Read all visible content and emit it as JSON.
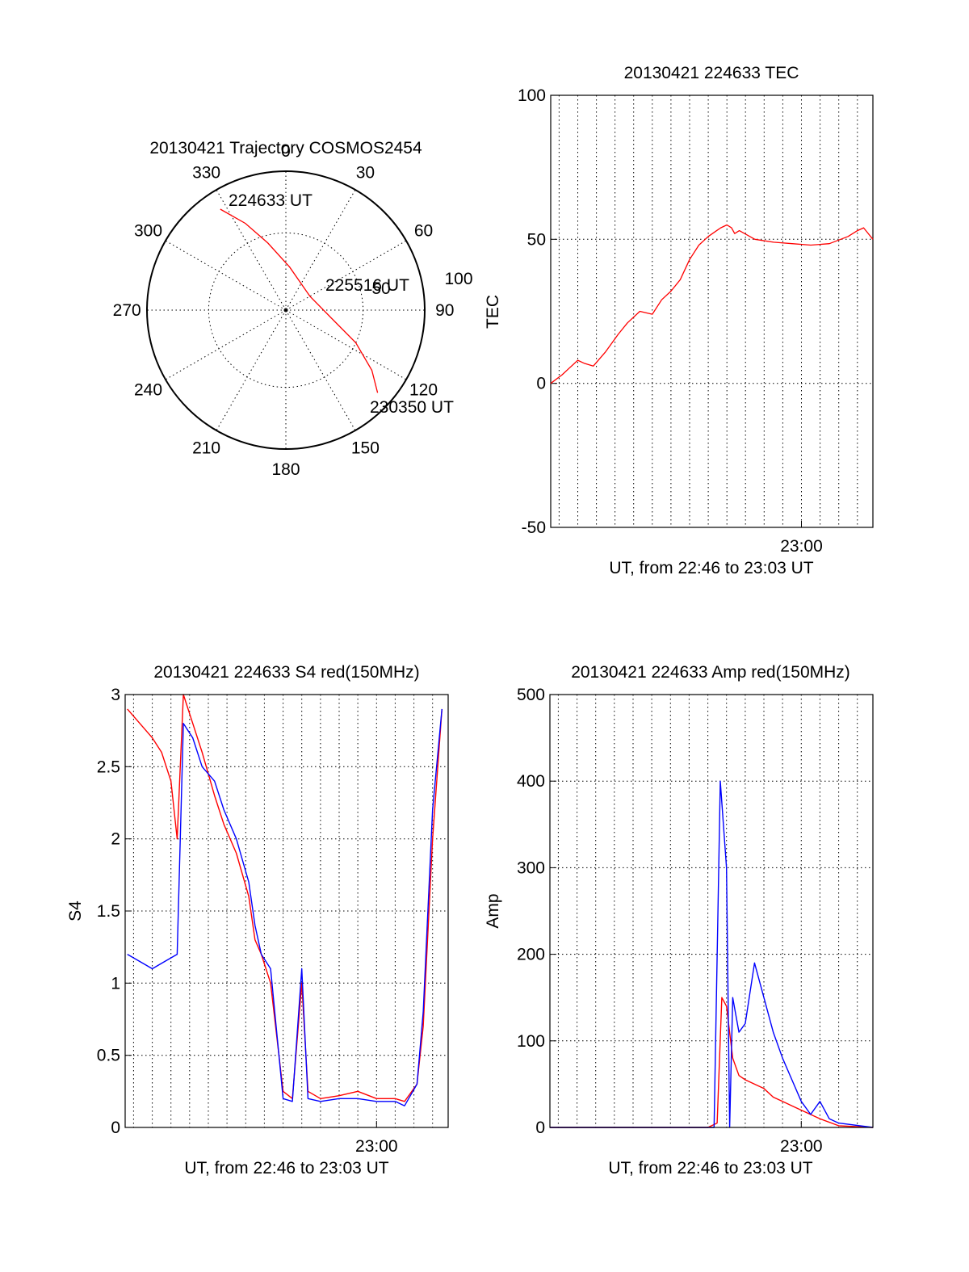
{
  "colors": {
    "series_red": "#ff0000",
    "series_blue": "#0000ff",
    "axis": "#000000"
  },
  "chart_data": [
    {
      "id": "trajectory",
      "type": "scatter",
      "title": "20130421 Trajectory COSMOS2454",
      "coordinate_system": "polar (azimuth degrees clockwise from north, zenith angle outward)",
      "azimuth_labels": [
        "0",
        "30",
        "60",
        "90",
        "120",
        "150",
        "180",
        "210",
        "240",
        "270",
        "300",
        "330"
      ],
      "radial_labels": [
        "50",
        "100"
      ],
      "grid": true,
      "track": [
        {
          "az": 327,
          "za": 78
        },
        {
          "az": 335,
          "za": 62
        },
        {
          "az": 345,
          "za": 45
        },
        {
          "az": 5,
          "za": 28
        },
        {
          "az": 60,
          "za": 18
        },
        {
          "az": 100,
          "za": 30
        },
        {
          "az": 115,
          "za": 50
        },
        {
          "az": 125,
          "za": 68
        },
        {
          "az": 132,
          "za": 80
        }
      ],
      "annotations": [
        {
          "text": "224633 UT",
          "az": 327,
          "za": 78
        },
        {
          "text": "225516 UT",
          "az": 75,
          "za": 30
        },
        {
          "text": "230350 UT",
          "az": 132,
          "za": 80
        }
      ]
    },
    {
      "id": "tec",
      "type": "line",
      "title": "20130421 224633 TEC",
      "xlabel": "UT, from 22:46 to 23:03 UT",
      "ylabel": "TEC",
      "xlim": [
        "22:46:33",
        "23:03:50"
      ],
      "ylim": [
        -50,
        100
      ],
      "yticks": [
        "-50",
        "0",
        "50",
        "100"
      ],
      "xtick_labels": [
        {
          "x": "23:00:00",
          "label": "23:00"
        }
      ],
      "grid": true,
      "series": [
        {
          "color": "#ff0000",
          "x": [
            "22:46:33",
            "22:47:10",
            "22:47:30",
            "22:48:00",
            "22:48:20",
            "22:48:50",
            "22:49:30",
            "22:50:10",
            "22:50:40",
            "22:51:20",
            "22:52:00",
            "22:52:30",
            "22:53:00",
            "22:53:30",
            "22:54:00",
            "22:54:30",
            "22:55:00",
            "22:55:40",
            "22:56:00",
            "22:56:15",
            "22:56:25",
            "22:56:40",
            "22:57:30",
            "22:58:30",
            "22:59:30",
            "23:00:30",
            "23:01:30",
            "23:02:30",
            "23:03:00",
            "23:03:20",
            "23:03:50"
          ],
          "y": [
            0,
            3,
            5,
            8,
            7,
            6,
            11,
            17,
            21,
            25,
            24,
            29,
            32,
            36,
            43,
            48,
            51,
            54,
            55,
            54,
            52,
            53,
            50,
            49,
            48.5,
            48,
            48.5,
            51,
            53,
            54,
            50
          ]
        }
      ]
    },
    {
      "id": "s4",
      "type": "line",
      "title": "20130421 224633 S4 red(150MHz)",
      "xlabel": "UT, from 22:46 to 23:03 UT",
      "ylabel": "S4",
      "xlim": [
        "22:46:33",
        "23:03:50"
      ],
      "ylim": [
        0,
        3
      ],
      "yticks": [
        "0",
        "0.5",
        "1",
        "1.5",
        "2",
        "2.5",
        "3"
      ],
      "xtick_labels": [
        {
          "x": "23:00:00",
          "label": "23:00"
        }
      ],
      "grid": true,
      "series": [
        {
          "color": "#ff0000",
          "x": [
            "22:46:40",
            "22:47:20",
            "22:48:00",
            "22:48:30",
            "22:49:00",
            "22:49:20",
            "22:49:40",
            "22:50:10",
            "22:50:40",
            "22:51:20",
            "22:51:50",
            "22:52:30",
            "22:53:10",
            "22:53:30",
            "22:53:50",
            "22:54:20",
            "22:55:00",
            "22:55:30",
            "22:56:00",
            "22:56:20",
            "22:57:00",
            "22:58:00",
            "22:59:00",
            "23:00:00",
            "23:01:00",
            "23:01:30",
            "23:02:10",
            "23:02:30",
            "23:03:00",
            "23:03:30"
          ],
          "y": [
            2.9,
            2.8,
            2.7,
            2.6,
            2.4,
            2.0,
            3.0,
            2.8,
            2.6,
            2.3,
            2.1,
            1.9,
            1.6,
            1.3,
            1.2,
            1.0,
            0.25,
            0.2,
            1.0,
            0.25,
            0.2,
            0.22,
            0.25,
            0.2,
            0.2,
            0.18,
            0.3,
            0.7,
            2.0,
            2.9
          ]
        },
        {
          "color": "#0000ff",
          "x": [
            "22:46:40",
            "22:47:20",
            "22:48:00",
            "22:48:40",
            "22:49:20",
            "22:49:40",
            "22:50:10",
            "22:50:40",
            "22:51:20",
            "22:51:50",
            "22:52:30",
            "22:53:10",
            "22:53:30",
            "22:53:50",
            "22:54:20",
            "22:55:00",
            "22:55:30",
            "22:56:00",
            "22:56:20",
            "22:57:00",
            "22:58:00",
            "22:59:00",
            "23:00:00",
            "23:01:00",
            "23:01:30",
            "23:02:10",
            "23:02:30",
            "23:03:00",
            "23:03:30"
          ],
          "y": [
            1.2,
            1.15,
            1.1,
            1.15,
            1.2,
            2.8,
            2.7,
            2.5,
            2.4,
            2.2,
            2.0,
            1.7,
            1.4,
            1.2,
            1.1,
            0.2,
            0.18,
            1.1,
            0.2,
            0.18,
            0.2,
            0.2,
            0.18,
            0.18,
            0.15,
            0.3,
            0.8,
            2.2,
            2.9
          ]
        }
      ]
    },
    {
      "id": "amp",
      "type": "line",
      "title": "20130421 224633 Amp red(150MHz)",
      "xlabel": "UT, from 22:46 to 23:03 UT",
      "ylabel": "Amp",
      "xlim": [
        "22:46:33",
        "23:03:50"
      ],
      "ylim": [
        0,
        500
      ],
      "yticks": [
        "0",
        "100",
        "200",
        "300",
        "400",
        "500"
      ],
      "xtick_labels": [
        {
          "x": "23:00:00",
          "label": "23:00"
        }
      ],
      "grid": true,
      "series": [
        {
          "color": "#ff0000",
          "x": [
            "22:46:33",
            "22:55:00",
            "22:55:30",
            "22:55:45",
            "22:56:00",
            "22:56:20",
            "22:56:40",
            "22:57:00",
            "22:57:30",
            "22:58:00",
            "22:58:30",
            "22:59:00",
            "22:59:30",
            "23:00:00",
            "23:01:00",
            "23:02:00",
            "23:03:50"
          ],
          "y": [
            0,
            0,
            5,
            150,
            140,
            80,
            60,
            55,
            50,
            45,
            35,
            30,
            25,
            20,
            10,
            2,
            0
          ]
        },
        {
          "color": "#0000ff",
          "x": [
            "22:46:33",
            "22:55:00",
            "22:55:20",
            "22:55:40",
            "22:56:00",
            "22:56:10",
            "22:56:20",
            "22:56:40",
            "22:57:00",
            "22:57:30",
            "22:58:00",
            "22:58:30",
            "22:59:00",
            "22:59:30",
            "23:00:00",
            "23:00:30",
            "23:01:00",
            "23:01:30",
            "23:02:00",
            "23:03:50"
          ],
          "y": [
            0,
            0,
            0,
            400,
            300,
            0,
            150,
            110,
            120,
            190,
            150,
            110,
            80,
            55,
            30,
            15,
            30,
            10,
            5,
            0
          ]
        }
      ]
    }
  ]
}
